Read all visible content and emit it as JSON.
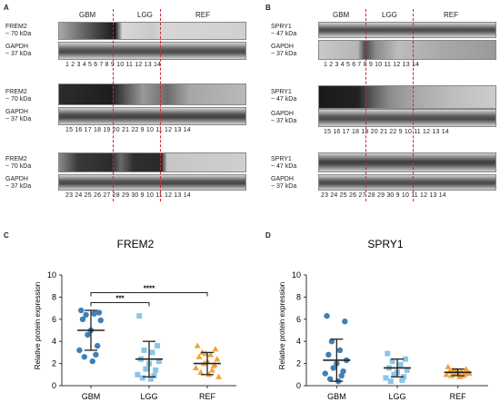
{
  "panel_labels": {
    "a": "A",
    "b": "B",
    "c": "C",
    "d": "D"
  },
  "groups": [
    "GBM",
    "LGG",
    "REF"
  ],
  "blots": {
    "A": {
      "rows": [
        {
          "protein": "FREM2",
          "kda": "~ 70 kDa",
          "ref_protein": "GAPDH",
          "ref_kda": "~ 37 kDa",
          "lanes": "1   2   3   4   5   6   7   8   9  10  11  12  13  14"
        },
        {
          "protein": "FREM2",
          "kda": "~ 70 kDa",
          "ref_protein": "GAPDH",
          "ref_kda": "~ 37 kDa",
          "lanes": "15  16  17  18  19  20  21  22  9  10  11  12  13  14"
        },
        {
          "protein": "FREM2",
          "kda": "~ 70 kDa",
          "ref_protein": "GAPDH",
          "ref_kda": "~ 37 kDa",
          "lanes": "23  24  25  26  27  28  29  30  9  10  11  12  13  14"
        }
      ]
    },
    "B": {
      "rows": [
        {
          "protein": "SPRY1",
          "kda": "~ 47 kDa",
          "ref_protein": "GAPDH",
          "ref_kda": "~ 37 kDa",
          "lanes": "1   2   3   4   5   6   7   8   9  10  11  12  13  14"
        },
        {
          "protein": "SPRY1",
          "kda": "~ 47 kDa",
          "ref_protein": "GAPDH",
          "ref_kda": "~ 37 kDa",
          "lanes": "15  16  17  18  19  20  21  22  9  10  11  12  13  14"
        },
        {
          "protein": "SPRY1",
          "kda": "~ 47 kDa",
          "ref_protein": "GAPDH",
          "ref_kda": "~ 37 kDa",
          "lanes": "23 24  25  26  27  28  29  30  9  10  11  12  13  14"
        }
      ]
    }
  },
  "chart_data": [
    {
      "type": "scatter",
      "title": "FREM2",
      "xlabel": "",
      "ylabel": "Relative protein expression",
      "categories": [
        "GBM",
        "LGG",
        "REF"
      ],
      "ylim": [
        0,
        10
      ],
      "yticks": [
        0,
        2,
        4,
        6,
        8,
        10
      ],
      "series": [
        {
          "category": "GBM",
          "marker": "circle",
          "color": "#3f7fb4",
          "mean": 5.0,
          "sd": 1.8,
          "values": [
            6.8,
            6.6,
            6.4,
            6.5,
            6.0,
            5.9,
            5.0,
            4.6,
            3.6,
            3.2,
            2.8,
            2.6,
            2.2
          ]
        },
        {
          "category": "LGG",
          "marker": "square",
          "color": "#8cc5e8",
          "mean": 2.4,
          "sd": 1.6,
          "values": [
            6.3,
            3.6,
            3.2,
            3.0,
            2.4,
            2.2,
            2.0,
            1.5,
            1.4,
            1.0,
            0.9,
            0.7,
            0.6
          ]
        },
        {
          "category": "REF",
          "marker": "triangle",
          "color": "#f2a33b",
          "mean": 2.0,
          "sd": 1.0,
          "values": [
            3.6,
            3.3,
            3.0,
            2.8,
            2.6,
            2.4,
            2.2,
            2.0,
            1.8,
            1.6,
            1.4,
            1.2,
            1.0,
            0.8,
            2.9,
            1.9
          ]
        }
      ],
      "significance": [
        {
          "from": "GBM",
          "to": "LGG",
          "label": "***"
        },
        {
          "from": "GBM",
          "to": "REF",
          "label": "****"
        }
      ]
    },
    {
      "type": "scatter",
      "title": "SPRY1",
      "xlabel": "",
      "ylabel": "Relative protein expression",
      "categories": [
        "GBM",
        "LGG",
        "REF"
      ],
      "ylim": [
        0,
        10
      ],
      "yticks": [
        0,
        2,
        4,
        6,
        8,
        10
      ],
      "series": [
        {
          "category": "GBM",
          "marker": "circle",
          "color": "#3f7fb4",
          "mean": 2.3,
          "sd": 1.9,
          "values": [
            6.3,
            5.8,
            4.0,
            3.2,
            2.8,
            2.3,
            2.0,
            1.6,
            1.3,
            1.1,
            0.9,
            0.6,
            0.4
          ]
        },
        {
          "category": "LGG",
          "marker": "square",
          "color": "#8cc5e8",
          "mean": 1.6,
          "sd": 0.8,
          "values": [
            2.9,
            2.4,
            2.2,
            1.9,
            1.6,
            1.4,
            1.2,
            1.0,
            0.8,
            0.7,
            0.5,
            0.4
          ]
        },
        {
          "category": "REF",
          "marker": "triangle",
          "color": "#f2a33b",
          "mean": 1.2,
          "sd": 0.3,
          "values": [
            1.7,
            1.5,
            1.4,
            1.3,
            1.3,
            1.2,
            1.2,
            1.1,
            1.0,
            1.0,
            0.9,
            0.9,
            0.8,
            1.1,
            1.4
          ]
        }
      ],
      "significance": []
    }
  ]
}
